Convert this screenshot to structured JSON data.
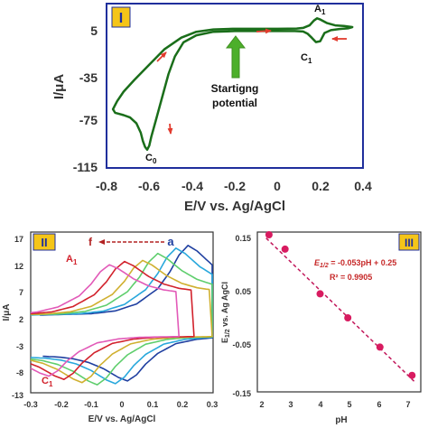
{
  "chart_data": [
    {
      "type": "line",
      "panel_label": "I",
      "xlabel": "E/V vs. Ag/AgCl",
      "ylabel": "I/μA",
      "xlim": [
        -0.8,
        0.4
      ],
      "ylim": [
        -115,
        25
      ],
      "xticks": [
        "-0.8",
        "-0.6",
        "-0.4",
        "-0.2",
        "0",
        "0.2",
        "0.4"
      ],
      "yticks": [
        "5",
        "-35",
        "-75",
        "-115"
      ],
      "xtick_values": [
        -0.8,
        -0.6,
        -0.4,
        -0.2,
        0,
        0.2,
        0.4
      ],
      "ytick_values": [
        5,
        -35,
        -75,
        -115
      ],
      "color": "#1a6e1a",
      "series": [
        {
          "x": [
            -0.21,
            0.0,
            0.05,
            0.09,
            0.12,
            0.15,
            0.17,
            0.185,
            0.2,
            0.23,
            0.27,
            0.31,
            0.35,
            0.33,
            0.29,
            0.25,
            0.22,
            0.2,
            0.18,
            0.16,
            0.14,
            0.12,
            0.08,
            0.0,
            -0.1,
            -0.2,
            -0.3,
            -0.38,
            -0.44,
            -0.48,
            -0.51,
            -0.54,
            -0.57,
            -0.59,
            -0.6,
            -0.61,
            -0.62,
            -0.63,
            -0.64,
            -0.66,
            -0.69,
            -0.72,
            -0.74,
            -0.76,
            -0.77,
            -0.75,
            -0.72,
            -0.67,
            -0.6,
            -0.53,
            -0.45,
            -0.38,
            -0.3,
            -0.21
          ],
          "y": [
            3.5,
            3.5,
            3.6,
            3.8,
            4.3,
            6.5,
            10.5,
            12.5,
            11.5,
            8.5,
            6.5,
            6.0,
            5.0,
            3.9,
            3.4,
            2.4,
            0.0,
            -7.0,
            -7.8,
            -4.0,
            -0.5,
            1.2,
            1.6,
            1.6,
            1.6,
            1.6,
            1.0,
            -2.0,
            -8.0,
            -20.0,
            -35.0,
            -55.0,
            -75.0,
            -88.0,
            -96.0,
            -99.5,
            -97.0,
            -92.0,
            -85.0,
            -77.0,
            -72.0,
            -70.0,
            -69.0,
            -68.0,
            -65.0,
            -58.0,
            -50.0,
            -40.0,
            -27.0,
            -14.0,
            -4.0,
            1.0,
            3.0,
            3.5
          ]
        }
      ],
      "annotations": {
        "anodic_peak": "A",
        "anodic_peak_sub": "1",
        "cathodic_peak": "C",
        "cathodic_peak_sub": "1",
        "start_peak": "C",
        "start_peak_sub": "0",
        "start_label_line1": "Startigng",
        "start_label_line2": "potential",
        "start_arrow_color": "#4caf2a",
        "direction_arrow_color": "#e23b2e"
      }
    },
    {
      "type": "line",
      "panel_label": "II",
      "xlabel": "E/V vs. Ag/AgCl",
      "ylabel": "I/μA",
      "xlim": [
        -0.3,
        0.3
      ],
      "ylim": [
        -13,
        17
      ],
      "xticks": [
        "-0.3",
        "-0.2",
        "-0.1",
        "0",
        "0.1",
        "0.2",
        "0.3"
      ],
      "yticks": [
        "17",
        "12",
        "7",
        "2",
        "-3",
        "-8",
        "-13"
      ],
      "xtick_values": [
        -0.3,
        -0.2,
        -0.1,
        0,
        0.1,
        0.2,
        0.3
      ],
      "ytick_values": [
        17,
        12,
        7,
        2,
        -3,
        -8,
        -13
      ],
      "shape": {
        "anodic_template": [
          [
            -0.47,
            0.0
          ],
          [
            -0.3,
            0.02
          ],
          [
            -0.22,
            0.06
          ],
          [
            -0.15,
            0.16
          ],
          [
            -0.08,
            0.38
          ],
          [
            -0.04,
            0.62
          ],
          [
            -0.01,
            0.86
          ],
          [
            0.02,
            1.0
          ],
          [
            0.05,
            0.92
          ],
          [
            0.1,
            0.72
          ],
          [
            0.15,
            0.58
          ],
          [
            0.2,
            0.5
          ],
          [
            0.25,
            0.46
          ]
        ],
        "cathodic_template": [
          [
            0.25,
            0.0
          ],
          [
            0.12,
            -0.02
          ],
          [
            0.05,
            -0.06
          ],
          [
            -0.02,
            -0.16
          ],
          [
            -0.08,
            -0.38
          ],
          [
            -0.12,
            -0.62
          ],
          [
            -0.15,
            -0.86
          ],
          [
            -0.18,
            -1.0
          ],
          [
            -0.21,
            -0.92
          ],
          [
            -0.26,
            -0.72
          ],
          [
            -0.31,
            -0.58
          ],
          [
            -0.36,
            -0.5
          ],
          [
            -0.41,
            -0.46
          ],
          [
            -0.47,
            -0.44
          ]
        ],
        "anodic_base": 1.5,
        "cathodic_base": -2.5
      },
      "series": [
        {
          "name": "a",
          "color": "#1f3fa0",
          "shift": 0.2,
          "amp_a": 13.0,
          "amp_c": 8.3
        },
        {
          "name": "",
          "color": "#29a8dc",
          "shift": 0.16,
          "amp_a": 12.5,
          "amp_c": 8.8
        },
        {
          "name": "",
          "color": "#5fce6d",
          "shift": 0.1,
          "amp_a": 11.5,
          "amp_c": 9.0
        },
        {
          "name": "",
          "color": "#d0b030",
          "shift": 0.05,
          "amp_a": 10.2,
          "amp_c": 8.6
        },
        {
          "name": "",
          "color": "#d2222c",
          "shift": -0.01,
          "amp_a": 10.0,
          "amp_c": 8.0
        },
        {
          "name": "f",
          "color": "#e25ab8",
          "shift": -0.06,
          "amp_a": 9.4,
          "amp_c": 7.4
        }
      ],
      "annotations": {
        "arrow_from": "f",
        "arrow_to": "a",
        "arrow_color": "#b22222",
        "anodic_peak": "A",
        "anodic_peak_sub": "1",
        "cathodic_peak": "C",
        "cathodic_peak_sub": "1",
        "label_color": "#d2222c"
      }
    },
    {
      "type": "scatter",
      "panel_label": "III",
      "xlabel": "pH",
      "ylabel": "E1/2 vs. Ag AgCl",
      "ylabel_main": "E",
      "ylabel_sub": "1/2",
      "ylabel_rest": " vs. Ag AgCl",
      "xlim": [
        1.8,
        7.4
      ],
      "ylim": [
        -0.15,
        0.15
      ],
      "xticks": [
        "2",
        "3",
        "4",
        "5",
        "6",
        "7"
      ],
      "yticks": [
        "0.15",
        "0.05",
        "-0.05",
        "-0.15"
      ],
      "xtick_values": [
        2,
        3,
        4,
        5,
        6,
        7
      ],
      "ytick_values": [
        0.15,
        0.05,
        -0.05,
        -0.15
      ],
      "x": [
        2.2,
        2.75,
        3.95,
        4.9,
        6.0,
        7.1
      ],
      "y": [
        0.145,
        0.118,
        0.034,
        -0.011,
        -0.066,
        -0.119
      ],
      "fit": {
        "slope": -0.053,
        "intercept": 0.25
      },
      "equation": {
        "lhs": "E",
        "lhs_sub": "1/2",
        "rhs": " = -0.053pH + 0.25",
        "r2_text": "R² = 0.9905"
      },
      "marker_color": "#d81b60",
      "text_color": "#c62828"
    }
  ],
  "colors": {
    "frame": "#1f2f9c",
    "axis": "#333333",
    "badge_fill": "#f5c518",
    "badge_text": "#1f2f9c"
  }
}
